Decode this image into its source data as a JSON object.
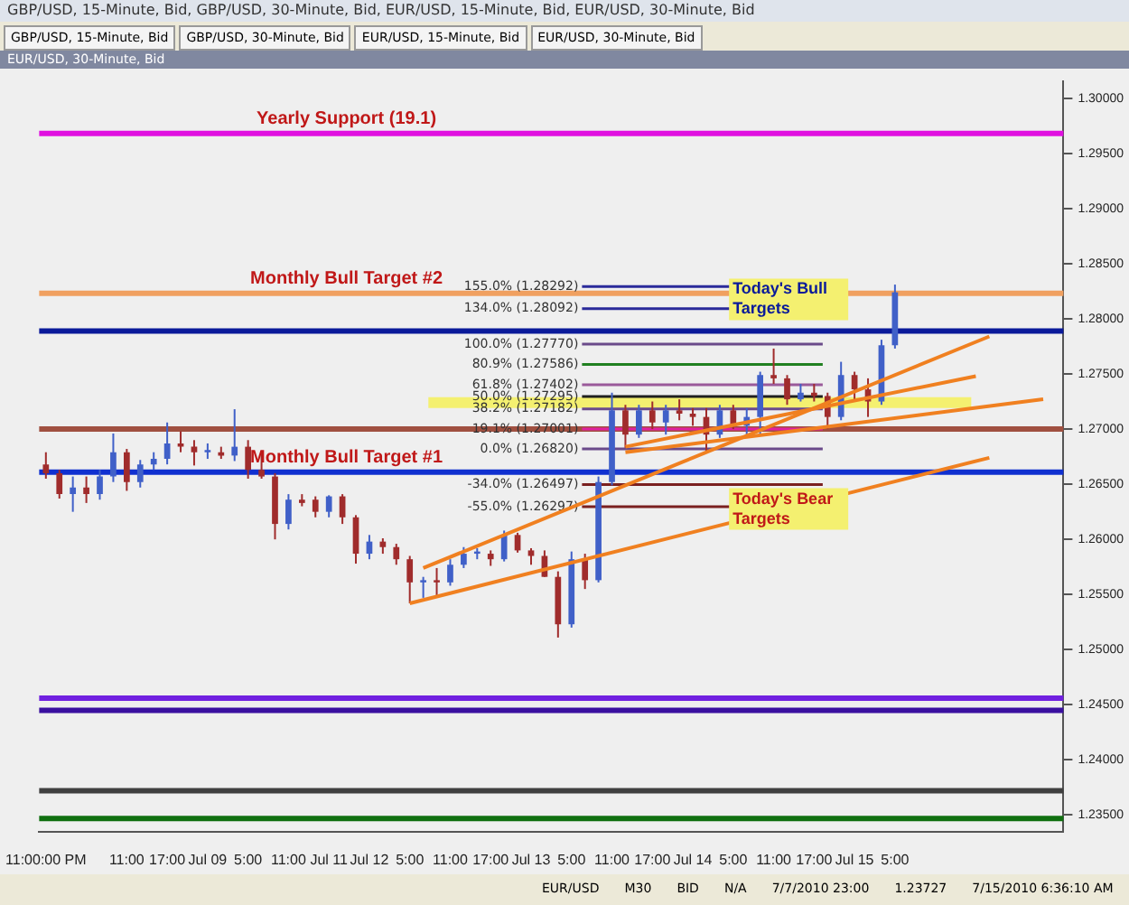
{
  "chart_data": {
    "type": "candlestick",
    "title": "EUR/USD, 30-Minute, Bid",
    "categories": [
      "11:00:00 PM",
      null,
      null,
      null,
      null,
      null,
      "11:00",
      null,
      null,
      "17:00",
      null,
      null,
      "Jul 09",
      null,
      null,
      "5:00",
      null,
      null,
      "11:00",
      null,
      null,
      "Jul 11",
      null,
      null,
      "Jul 12",
      null,
      null,
      "5:00",
      null,
      null,
      "11:00",
      null,
      null,
      "17:00",
      null,
      null,
      "Jul 13",
      null,
      null,
      "5:00",
      null,
      null,
      "11:00",
      null,
      null,
      "17:00",
      null,
      null,
      "Jul 14",
      null,
      null,
      "5:00",
      null,
      null,
      "11:00",
      null,
      null,
      "17:00",
      null,
      null,
      "Jul 15",
      null,
      null,
      "5:00",
      null,
      null,
      null,
      null,
      null,
      null,
      null,
      null,
      null,
      null,
      null,
      null
    ],
    "ohlc": [
      [
        1.2668,
        1.2679,
        1.2655,
        1.266
      ],
      [
        1.266,
        1.2663,
        1.2637,
        1.2641
      ],
      [
        1.2641,
        1.2657,
        1.2625,
        1.2647
      ],
      [
        1.2647,
        1.2657,
        1.2633,
        1.2641
      ],
      [
        1.2641,
        1.2663,
        1.2636,
        1.2657
      ],
      [
        1.2657,
        1.2696,
        1.2652,
        1.2679
      ],
      [
        1.2679,
        1.2682,
        1.2644,
        1.2652
      ],
      [
        1.2652,
        1.2672,
        1.2647,
        1.2668
      ],
      [
        1.2668,
        1.2679,
        1.2663,
        1.2673
      ],
      [
        1.2673,
        1.2706,
        1.2668,
        1.2687
      ],
      [
        1.2687,
        1.2698,
        1.2679,
        1.2684
      ],
      [
        1.2684,
        1.269,
        1.2667,
        1.2679
      ],
      [
        1.2679,
        1.2687,
        1.2673,
        1.2681
      ],
      [
        1.2679,
        1.2684,
        1.2673,
        1.2676
      ],
      [
        1.2676,
        1.2718,
        1.2671,
        1.2684
      ],
      [
        1.2684,
        1.269,
        1.2655,
        1.2663
      ],
      [
        1.2663,
        1.2679,
        1.2655,
        1.2657
      ],
      [
        1.2657,
        1.266,
        1.26,
        1.2614
      ],
      [
        1.2614,
        1.2641,
        1.2609,
        1.2636
      ],
      [
        1.2636,
        1.2641,
        1.263,
        1.2633
      ],
      [
        1.2636,
        1.2639,
        1.262,
        1.2625
      ],
      [
        1.2625,
        1.264,
        1.262,
        1.2639
      ],
      [
        1.2639,
        1.2641,
        1.2614,
        1.262
      ],
      [
        1.262,
        1.2622,
        1.2578,
        1.2587
      ],
      [
        1.2587,
        1.2604,
        1.2582,
        1.2598
      ],
      [
        1.2598,
        1.2601,
        1.2587,
        1.2593
      ],
      [
        1.2593,
        1.2596,
        1.2577,
        1.2582
      ],
      [
        1.2582,
        1.2585,
        1.2542,
        1.2561
      ],
      [
        1.2561,
        1.2566,
        1.2547,
        1.2563
      ],
      [
        1.2563,
        1.2574,
        1.2547,
        1.2561
      ],
      [
        1.2561,
        1.2582,
        1.2558,
        1.2577
      ],
      [
        1.2577,
        1.2593,
        1.2574,
        1.2587
      ],
      [
        1.2587,
        1.2592,
        1.2582,
        1.2589
      ],
      [
        1.2587,
        1.259,
        1.2576,
        1.2582
      ],
      [
        1.2582,
        1.2608,
        1.258,
        1.2604
      ],
      [
        1.2604,
        1.2606,
        1.2588,
        1.259
      ],
      [
        1.259,
        1.2592,
        1.2577,
        1.2585
      ],
      [
        1.2585,
        1.259,
        1.2566,
        1.2566
      ],
      [
        1.2566,
        1.2571,
        1.2511,
        1.2523
      ],
      [
        1.2523,
        1.2589,
        1.252,
        1.2582
      ],
      [
        1.2582,
        1.2587,
        1.2555,
        1.2563
      ],
      [
        1.2563,
        1.2657,
        1.2561,
        1.2652
      ],
      [
        1.2652,
        1.2733,
        1.2649,
        1.2717
      ],
      [
        1.2717,
        1.2722,
        1.2683,
        1.2695
      ],
      [
        1.2695,
        1.2722,
        1.2692,
        1.2717
      ],
      [
        1.2717,
        1.2725,
        1.27,
        1.2706
      ],
      [
        1.2706,
        1.2722,
        1.2695,
        1.2717
      ],
      [
        1.2717,
        1.2727,
        1.2708,
        1.2714
      ],
      [
        1.2714,
        1.2719,
        1.2703,
        1.2711
      ],
      [
        1.2711,
        1.2719,
        1.2679,
        1.2695
      ],
      [
        1.2695,
        1.2722,
        1.2692,
        1.2717
      ],
      [
        1.2717,
        1.2722,
        1.27,
        1.2703
      ],
      [
        1.2703,
        1.2719,
        1.2695,
        1.2711
      ],
      [
        1.2711,
        1.2752,
        1.2695,
        1.2749
      ],
      [
        1.2749,
        1.2773,
        1.2741,
        1.2746
      ],
      [
        1.2746,
        1.2749,
        1.2722,
        1.2727
      ],
      [
        1.2727,
        1.2741,
        1.2725,
        1.2733
      ],
      [
        1.2733,
        1.2741,
        1.2725,
        1.273
      ],
      [
        1.273,
        1.2733,
        1.27,
        1.2711
      ],
      [
        1.2711,
        1.2761,
        1.2708,
        1.2749
      ],
      [
        1.2749,
        1.2752,
        1.2727,
        1.2736
      ],
      [
        1.2736,
        1.2746,
        1.2711,
        1.2725
      ],
      [
        1.2725,
        1.2781,
        1.2722,
        1.2776
      ],
      [
        1.2776,
        1.2831,
        1.2773,
        1.2824
      ],
      null,
      null,
      null,
      null,
      null,
      null,
      null,
      null,
      null,
      null,
      null,
      null
    ],
    "colors": [
      "#a02c2c",
      "#a02c2c",
      "#4060c8",
      "#a02c2c",
      "#4060c8",
      "#4060c8",
      "#a02c2c",
      "#4060c8",
      "#4060c8",
      "#4060c8",
      "#a02c2c",
      "#a02c2c",
      "#4060c8",
      "#a02c2c",
      "#4060c8",
      "#a02c2c",
      "#a02c2c",
      "#a02c2c",
      "#4060c8",
      "#a02c2c",
      "#a02c2c",
      "#4060c8",
      "#a02c2c",
      "#a02c2c",
      "#4060c8",
      "#a02c2c",
      "#a02c2c",
      "#a02c2c",
      "#4060c8",
      "#a02c2c",
      "#4060c8",
      "#4060c8",
      "#4060c8",
      "#a02c2c",
      "#4060c8",
      "#a02c2c",
      "#a02c2c",
      "#a02c2c",
      "#a02c2c",
      "#4060c8",
      "#a02c2c",
      "#4060c8",
      "#4060c8",
      "#a02c2c",
      "#4060c8",
      "#a02c2c",
      "#4060c8",
      "#a02c2c",
      "#a02c2c",
      "#a02c2c",
      "#4060c8",
      "#a02c2c",
      "#4060c8",
      "#4060c8",
      "#a02c2c",
      "#a02c2c",
      "#4060c8",
      "#a02c2c",
      "#a02c2c",
      "#4060c8",
      "#a02c2c",
      "#a02c2c",
      "#4060c8",
      "#4060c8",
      null,
      null,
      null,
      null,
      null,
      null,
      null,
      null,
      null,
      null,
      null,
      null
    ],
    "series": [
      {
        "type": "line",
        "color": "#f08020",
        "values": [
          null,
          null,
          null,
          null,
          null,
          null,
          null,
          null,
          null,
          null,
          null,
          null,
          null,
          null,
          null,
          null,
          null,
          null,
          null,
          null,
          null,
          null,
          null,
          null,
          null,
          null,
          null,
          null,
          1.2574,
          null,
          null,
          null,
          null,
          null,
          null,
          null,
          null,
          null,
          null,
          null,
          null,
          null,
          null,
          null,
          null,
          null,
          null,
          null,
          null,
          null,
          null,
          null,
          null,
          null,
          null,
          null,
          null,
          null,
          null,
          null,
          null,
          null,
          null,
          null,
          null,
          null,
          null,
          null,
          null,
          null,
          1.2784,
          null,
          null,
          null,
          null,
          null
        ]
      },
      {
        "type": "line",
        "color": "#f08020",
        "values": [
          null,
          null,
          null,
          null,
          null,
          null,
          null,
          null,
          null,
          null,
          null,
          null,
          null,
          null,
          null,
          null,
          null,
          null,
          null,
          null,
          null,
          null,
          null,
          null,
          null,
          null,
          null,
          1.2542,
          null,
          null,
          null,
          null,
          null,
          null,
          null,
          null,
          null,
          null,
          null,
          null,
          null,
          null,
          null,
          null,
          null,
          null,
          null,
          null,
          null,
          null,
          null,
          null,
          null,
          null,
          null,
          null,
          null,
          null,
          null,
          null,
          null,
          null,
          null,
          null,
          null,
          null,
          null,
          null,
          null,
          null,
          1.2674,
          null,
          null,
          null,
          null,
          null
        ]
      },
      {
        "type": "line",
        "color": "#f08020",
        "values": [
          null,
          null,
          null,
          null,
          null,
          null,
          null,
          null,
          null,
          null,
          null,
          null,
          null,
          null,
          null,
          null,
          null,
          null,
          null,
          null,
          null,
          null,
          null,
          null,
          null,
          null,
          null,
          null,
          null,
          null,
          null,
          null,
          null,
          null,
          null,
          null,
          null,
          null,
          null,
          null,
          null,
          null,
          null,
          1.2684,
          null,
          null,
          null,
          null,
          null,
          null,
          null,
          null,
          null,
          null,
          null,
          null,
          null,
          null,
          null,
          null,
          null,
          null,
          null,
          null,
          null,
          null,
          null,
          null,
          null,
          1.2748,
          null,
          null,
          null,
          null,
          null,
          null
        ]
      },
      {
        "type": "line",
        "color": "#f08020",
        "values": [
          null,
          null,
          null,
          null,
          null,
          null,
          null,
          null,
          null,
          null,
          null,
          null,
          null,
          null,
          null,
          null,
          null,
          null,
          null,
          null,
          null,
          null,
          null,
          null,
          null,
          null,
          null,
          null,
          null,
          null,
          null,
          null,
          null,
          null,
          null,
          null,
          null,
          null,
          null,
          null,
          null,
          null,
          null,
          1.2679,
          null,
          null,
          null,
          null,
          null,
          null,
          null,
          null,
          null,
          null,
          null,
          null,
          null,
          null,
          null,
          null,
          null,
          null,
          null,
          null,
          null,
          null,
          null,
          null,
          null,
          null,
          null,
          null,
          null,
          null,
          1.2727,
          null
        ]
      }
    ],
    "ylim": [
      1.2335,
      1.3015
    ],
    "yticks": [
      {
        "value": 1.235,
        "label": "1.23500"
      },
      {
        "value": 1.24,
        "label": "1.24000"
      },
      {
        "value": 1.245,
        "label": "1.24500"
      },
      {
        "value": 1.25,
        "label": "1.25000"
      },
      {
        "value": 1.255,
        "label": "1.25500"
      },
      {
        "value": 1.26,
        "label": "1.26000"
      },
      {
        "value": 1.265,
        "label": "1.26500"
      },
      {
        "value": 1.27,
        "label": "1.27000"
      },
      {
        "value": 1.275,
        "label": "1.27500"
      },
      {
        "value": 1.28,
        "label": "1.28000"
      },
      {
        "value": 1.285,
        "label": "1.28500"
      },
      {
        "value": 1.29,
        "label": "1.29000"
      },
      {
        "value": 1.295,
        "label": "1.29500"
      },
      {
        "value": 1.3,
        "label": "1.30000"
      }
    ],
    "ref_lines": [
      {
        "axis": "y",
        "value": 1.2968,
        "label": "Yearly Support (19.1)",
        "color": "#e010e0"
      },
      {
        "axis": "y",
        "value": 1.2823,
        "label": "Monthly Bull Target #2",
        "color": "#f0a060"
      },
      {
        "axis": "y",
        "value": 1.2789,
        "color": "#0a1a9a"
      },
      {
        "axis": "y",
        "value": 1.2661,
        "label": "Monthly Bull Target #1",
        "color": "#1030d0"
      },
      {
        "axis": "y",
        "value": 1.27,
        "color": "#a05040"
      },
      {
        "axis": "y",
        "value": 1.2456,
        "color": "#7020e0"
      },
      {
        "axis": "y",
        "value": 1.2445,
        "color": "#3a10a0"
      },
      {
        "axis": "y",
        "value": 1.2372,
        "color": "#404040"
      },
      {
        "axis": "y",
        "value": 1.2347,
        "color": "#107010"
      },
      {
        "axis": "y",
        "value": 1.28292,
        "label": "155.0% (1.28292)",
        "color": "#2a2a9a",
        "line_style": "solid"
      },
      {
        "axis": "y",
        "value": 1.28092,
        "label": "134.0% (1.28092)",
        "color": "#2a2a9a",
        "line_style": "solid"
      },
      {
        "axis": "y",
        "value": 1.2777,
        "label": "100.0% (1.27770)",
        "color": "#6a4a8a",
        "line_style": "solid"
      },
      {
        "axis": "y",
        "value": 1.27586,
        "label": "80.9% (1.27586)",
        "color": "#208020",
        "line_style": "solid"
      },
      {
        "axis": "y",
        "value": 1.27402,
        "label": "61.8% (1.27402)",
        "color": "#9a5a9a",
        "line_style": "solid"
      },
      {
        "axis": "y",
        "value": 1.27295,
        "label": "50.0% (1.27295)",
        "color": "#202020",
        "line_style": "solid"
      },
      {
        "axis": "y",
        "value": 1.27182,
        "label": "38.2% (1.27182)",
        "color": "#6a4a8a",
        "line_style": "solid"
      },
      {
        "axis": "y",
        "value": 1.27001,
        "label": "19.1% (1.27001)",
        "color": "#e020a0",
        "line_style": "solid"
      },
      {
        "axis": "y",
        "value": 1.2682,
        "label": "0.0% (1.26820)",
        "color": "#6a4a8a",
        "line_style": "solid"
      },
      {
        "axis": "y",
        "value": 1.26497,
        "label": "-34.0% (1.26497)",
        "color": "#7a2020",
        "line_style": "solid"
      },
      {
        "axis": "y",
        "value": 1.26297,
        "label": "-55.0% (1.26297)",
        "color": "#7a2020",
        "line_style": "solid"
      }
    ],
    "bands": [
      {
        "axis": "y",
        "from": 1.2719,
        "to": 1.2729,
        "color": "#f4f070"
      }
    ],
    "annotations": [
      "GBP/USD, 15-Minute, Bid, GBP/USD, 30-Minute, Bid, EUR/USD, 15-Minute, Bid, EUR/USD, 30-Minute, Bid",
      "GBP/USD, 15-Minute, Bid",
      "GBP/USD, 30-Minute, Bid",
      "EUR/USD, 15-Minute, Bid",
      "EUR/USD, 30-Minute, Bid",
      "EUR/USD",
      "M30",
      "BID",
      "N/A",
      "7/7/2010 23:00",
      "1.23727",
      "7/15/2010 6:36:10 AM",
      {
        "text": "Today's Bull Targets",
        "y": 1.282
      },
      {
        "text": "Today's Bear Targets",
        "y": 1.263
      }
    ],
    "grid": false,
    "legend": false
  }
}
